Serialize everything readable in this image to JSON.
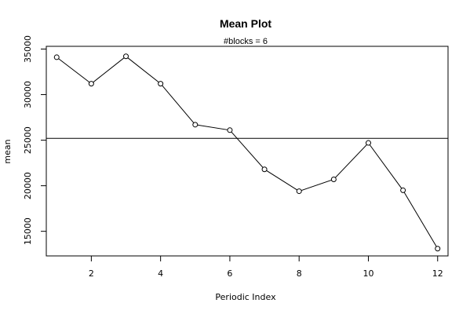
{
  "chart_data": {
    "type": "line",
    "title": "Mean Plot",
    "subtitle": "#blocks =  6",
    "xlabel": "Periodic Index",
    "ylabel": "mean",
    "xlim": [
      0.7,
      12.3
    ],
    "ylim": [
      12300,
      35300
    ],
    "x_ticks": [
      2,
      4,
      6,
      8,
      10,
      12
    ],
    "y_ticks": [
      15000,
      20000,
      25000,
      30000,
      35000
    ],
    "x": [
      1,
      2,
      3,
      4,
      5,
      6,
      7,
      8,
      9,
      10,
      11,
      12
    ],
    "values": [
      34100,
      31200,
      34200,
      31200,
      26700,
      26100,
      21800,
      19400,
      20700,
      24700,
      19500,
      13100
    ],
    "reference_line": 25200,
    "grid": false,
    "colors": {
      "line": "#000000",
      "axis": "#000000",
      "background": "#ffffff"
    }
  }
}
